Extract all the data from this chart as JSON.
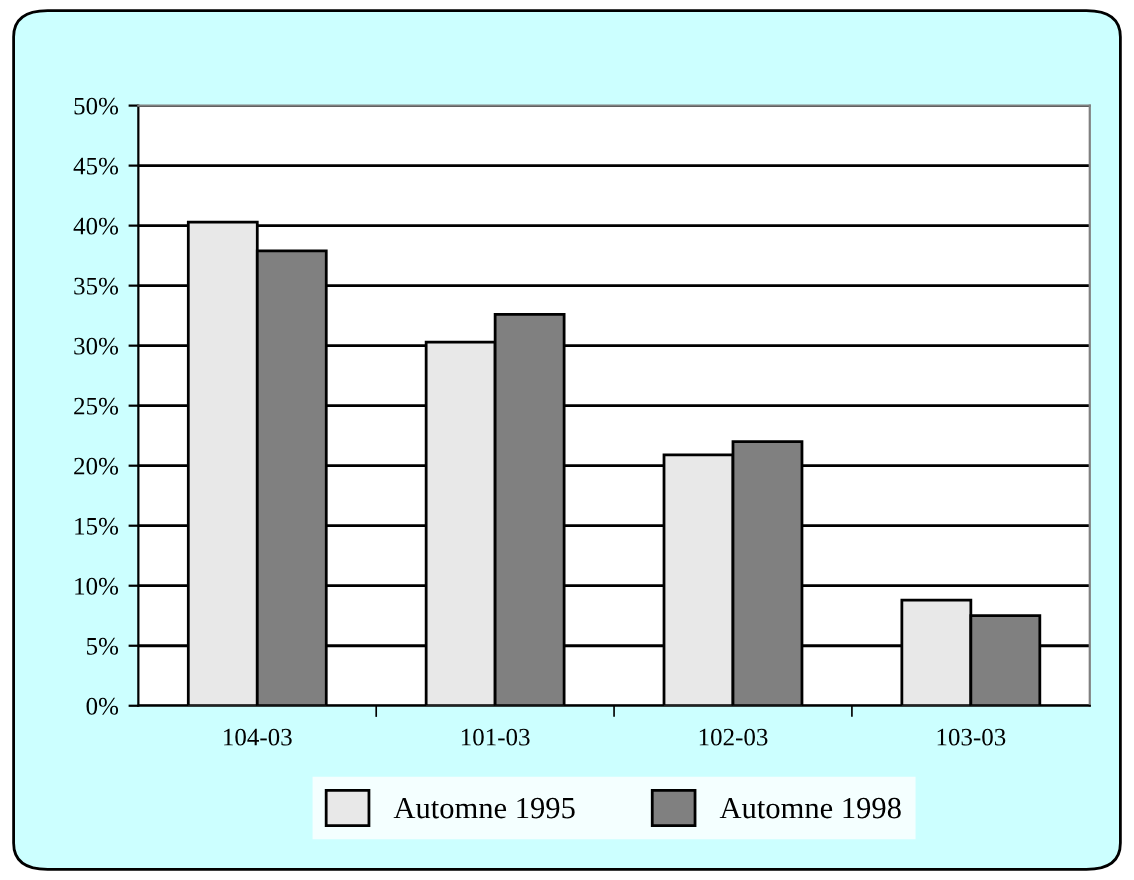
{
  "chart_data": {
    "type": "bar",
    "categories": [
      "104-03",
      "101-03",
      "102-03",
      "103-03"
    ],
    "series": [
      {
        "name": "Automne 1995",
        "color": "#e8e8e8",
        "values": [
          40.3,
          30.3,
          20.9,
          8.8
        ]
      },
      {
        "name": "Automne 1998",
        "color": "#808080",
        "values": [
          37.9,
          32.6,
          22.0,
          7.5
        ]
      }
    ],
    "ylim": [
      0,
      50
    ],
    "yticks": [
      {
        "value": 0,
        "label": "0%"
      },
      {
        "value": 5,
        "label": "5%"
      },
      {
        "value": 10,
        "label": "10%"
      },
      {
        "value": 15,
        "label": "15%"
      },
      {
        "value": 20,
        "label": "20%"
      },
      {
        "value": 25,
        "label": "25%"
      },
      {
        "value": 30,
        "label": "30%"
      },
      {
        "value": 35,
        "label": "35%"
      },
      {
        "value": 40,
        "label": "40%"
      },
      {
        "value": 45,
        "label": "45%"
      },
      {
        "value": 50,
        "label": "50%"
      }
    ],
    "grid": "y",
    "legend": "bottom"
  }
}
